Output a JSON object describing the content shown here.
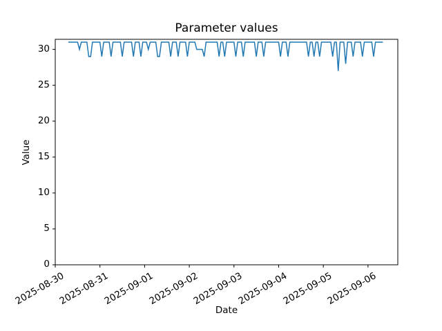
{
  "figure": {
    "background_color": "#ffffff"
  },
  "chart_data": {
    "type": "line",
    "title": "Parameter values",
    "xlabel": "Date",
    "ylabel": "Value",
    "line_color": "#1f77b4",
    "axis_color": "#000000",
    "grid": "off",
    "legend": "none",
    "ylim": [
      0,
      31.4
    ],
    "y_ticks": [
      0,
      5,
      10,
      15,
      20,
      25,
      30
    ],
    "xlim_hours": [
      0,
      184
    ],
    "x_tick_hours": [
      0,
      24,
      48,
      72,
      96,
      120,
      144,
      168
    ],
    "x_tick_labels": [
      "2025-08-30",
      "2025-08-31",
      "2025-09-01",
      "2025-09-02",
      "2025-09-03",
      "2025-09-04",
      "2025-09-05",
      "2025-09-06"
    ],
    "series": [
      {
        "name": "parameter",
        "start_hour": 7,
        "step_hours": 1,
        "values": [
          31,
          31,
          31,
          31,
          31,
          31,
          30,
          31,
          31,
          31,
          31,
          29,
          29,
          31,
          31,
          31,
          31,
          31,
          29,
          31,
          31,
          31,
          31,
          29,
          31,
          31,
          31,
          31,
          31,
          29,
          31,
          31,
          31,
          31,
          31,
          29,
          31,
          31,
          31,
          29,
          31,
          31,
          31,
          30,
          31,
          31,
          31,
          31,
          29,
          29,
          31,
          31,
          31,
          31,
          31,
          29,
          31,
          31,
          31,
          29,
          31,
          31,
          31,
          31,
          29,
          31,
          31,
          31,
          31,
          30,
          30,
          30,
          30,
          29,
          31,
          31,
          31,
          31,
          31,
          31,
          31,
          29,
          31,
          31,
          29,
          31,
          31,
          31,
          31,
          31,
          29,
          31,
          31,
          31,
          29,
          31,
          31,
          31,
          31,
          31,
          31,
          29,
          31,
          31,
          31,
          29,
          31,
          31,
          31,
          31,
          31,
          31,
          31,
          31,
          29,
          31,
          31,
          31,
          29,
          31,
          31,
          31,
          31,
          31,
          31,
          31,
          31,
          31,
          31,
          29,
          31,
          31,
          29,
          31,
          31,
          29,
          31,
          31,
          31,
          31,
          31,
          31,
          29,
          31,
          31,
          27,
          31,
          31,
          31,
          28,
          31,
          31,
          31,
          29,
          31,
          31,
          31,
          31,
          29,
          31,
          31,
          31,
          31,
          31,
          29,
          31,
          31,
          31,
          31,
          31
        ]
      }
    ]
  }
}
